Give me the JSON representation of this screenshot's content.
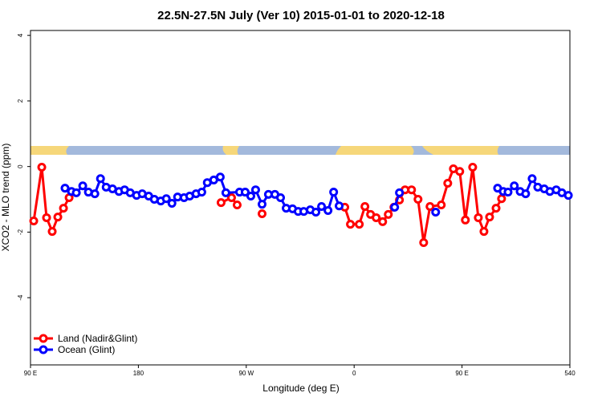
{
  "chart_data": {
    "type": "line",
    "title": "22.5N-27.5N July (Ver 10)   2015-01-01 to 2020-12-18",
    "xlabel": "Longitude (deg E)",
    "ylabel": "XCO2 - MLO trend (ppm)",
    "xlim": [
      90,
      540
    ],
    "ylim": [
      -6.05,
      4.15
    ],
    "xticks": [
      {
        "value": 90,
        "label": "90 E"
      },
      180,
      {
        "value": 270,
        "label": "90 W"
      },
      {
        "value": 360,
        "label": "0"
      },
      {
        "value": 450,
        "label": "90 E"
      },
      540
    ],
    "yticks": [
      -4,
      -2,
      0,
      2,
      4
    ],
    "legend": "bottom-left",
    "series": [
      {
        "name": "Land (Nadir&Glint)",
        "color": "#ff0000",
        "x": [
          92.7,
          99.4,
          103.4,
          108.1,
          112.8,
          117.5,
          122.2,
          null,
          249.0,
          257.7,
          262.4,
          null,
          283.2,
          null,
          352.2,
          356.9,
          364.3,
          369.0,
          373.7,
          378.4,
          383.8,
          388.5,
          393.2,
          397.8,
          402.5,
          407.9,
          413.3,
          418.0,
          423.3,
          432.7,
          438.1,
          442.8,
          448.1,
          452.8,
          458.9,
          463.6,
          468.3,
          473.0,
          478.4,
          483.0
        ],
        "values": [
          -1.66,
          -0.02,
          -1.56,
          -1.98,
          -1.54,
          -1.27,
          -0.95,
          null,
          -1.1,
          -0.95,
          -1.17,
          null,
          -1.44,
          null,
          -1.24,
          -1.76,
          -1.76,
          -1.22,
          -1.46,
          -1.56,
          -1.68,
          -1.46,
          -1.24,
          -1.02,
          -0.71,
          -0.71,
          -1.0,
          -2.32,
          -1.22,
          -1.17,
          -0.51,
          -0.07,
          -0.15,
          -1.63,
          -0.02,
          -1.56,
          -1.98,
          -1.54,
          -1.27,
          -0.98
        ]
      },
      {
        "name": "Ocean (Glint)",
        "color": "#0000ff",
        "x": [
          118.8,
          124.2,
          128.2,
          133.6,
          138.3,
          143.7,
          148.4,
          153.1,
          158.4,
          163.8,
          168.5,
          173.2,
          178.5,
          183.2,
          188.6,
          193.3,
          198.7,
          203.3,
          208.0,
          212.7,
          218.1,
          222.8,
          228.1,
          232.9,
          237.5,
          242.9,
          248.3,
          253.0,
          264.4,
          269.1,
          273.8,
          277.8,
          283.2,
          288.5,
          293.9,
          298.6,
          303.3,
          308.6,
          313.3,
          318.0,
          323.4,
          328.1,
          332.8,
          338.2,
          342.9,
          347.5,
          null,
          393.8,
          397.8,
          null,
          428.0,
          null,
          479.7,
          484.4,
          488.4,
          493.6,
          498.5,
          503.1,
          508.5,
          513.2,
          518.6,
          523.3,
          528.6,
          533.3,
          538.7
        ],
        "values": [
          -0.66,
          -0.76,
          -0.8,
          -0.59,
          -0.78,
          -0.83,
          -0.37,
          -0.63,
          -0.68,
          -0.76,
          -0.71,
          -0.8,
          -0.88,
          -0.83,
          -0.9,
          -1.0,
          -1.05,
          -0.98,
          -1.12,
          -0.93,
          -0.95,
          -0.9,
          -0.83,
          -0.78,
          -0.49,
          -0.41,
          -0.32,
          -0.8,
          -0.78,
          -0.78,
          -0.9,
          -0.71,
          -1.15,
          -0.85,
          -0.85,
          -0.95,
          -1.27,
          -1.29,
          -1.37,
          -1.37,
          -1.32,
          -1.39,
          -1.22,
          -1.34,
          -0.78,
          -1.2,
          null,
          -1.24,
          -0.8,
          null,
          -1.39,
          null,
          -0.66,
          -0.76,
          -0.78,
          -0.59,
          -0.76,
          -0.83,
          -0.37,
          -0.63,
          -0.68,
          -0.76,
          -0.71,
          -0.8,
          -0.88
        ]
      }
    ]
  }
}
